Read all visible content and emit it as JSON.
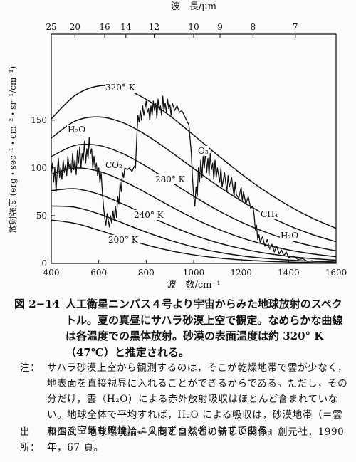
{
  "chart_data": {
    "type": "line",
    "x_axis_label": "波　数/cm⁻¹",
    "x2_axis_label": "波　長/μm",
    "y_axis_label": "放射強度 (erg・sec⁻¹・cm⁻²・sr⁻¹/cm⁻¹)",
    "xlim": [
      400,
      1600
    ],
    "xticks": [
      400,
      600,
      800,
      1000,
      1200,
      1400,
      1600
    ],
    "x2ticks": [
      25,
      20,
      16,
      14,
      12,
      10,
      9,
      8,
      7
    ],
    "ylim": [
      0,
      240
    ],
    "yticks": [
      0,
      50,
      100,
      150
    ],
    "annotations": [
      "320° K",
      "H₂O",
      "CO₂",
      "280° K",
      "240° K",
      "200° K",
      "O₃",
      "CH₄",
      "H₂O"
    ],
    "series": [
      {
        "color": "#111",
        "smooth": true,
        "x": [
          400,
          500,
          600,
          700,
          800,
          900,
          1000,
          1100,
          1200,
          1300,
          1400,
          1500,
          1600
        ],
        "values": [
          151.2,
          175.8,
          185.8,
          183.4,
          171.8,
          154.5,
          134.3,
          113.6,
          93.8,
          75.9,
          60.4,
          47.4,
          36.7
        ]
      },
      {
        "color": "#111",
        "smooth": true,
        "x": [
          400,
          500,
          600,
          700,
          800,
          900,
          1000,
          1100,
          1200,
          1300,
          1400,
          1500,
          1600
        ],
        "values": [
          131.2,
          148.9,
          153.4,
          147.5,
          134.4,
          117.4,
          99.3,
          81.5,
          65.4,
          51.4,
          39.7,
          30.2,
          22.7
        ]
      },
      {
        "color": "#111",
        "smooth": true,
        "x": [
          400,
          500,
          600,
          700,
          800,
          900,
          1000,
          1100,
          1200,
          1300,
          1400,
          1500,
          1600
        ],
        "values": [
          111.9,
          123.5,
          123.5,
          115.1,
          101.6,
          86.0,
          70.3,
          55.8,
          43.3,
          32.9,
          24.6,
          18.1,
          13.1
        ]
      },
      {
        "color": "#111",
        "smooth": true,
        "x": [
          400,
          500,
          600,
          700,
          800,
          900,
          1000,
          1100,
          1200,
          1300,
          1400,
          1500,
          1600
        ],
        "values": [
          93.5,
          99.9,
          96.5,
          86.7,
          73.8,
          60.1,
          47.2,
          36.1,
          26.9,
          19.7,
          14.1,
          10.0,
          7.0
        ]
      },
      {
        "color": "#111",
        "smooth": true,
        "x": [
          400,
          500,
          600,
          700,
          800,
          900,
          1000,
          1100,
          1200,
          1300,
          1400,
          1500,
          1600
        ],
        "values": [
          76.2,
          78.2,
          72.5,
          62.4,
          50.8,
          39.6,
          29.7,
          21.7,
          15.5,
          10.8,
          7.4,
          5.0,
          3.3
        ]
      },
      {
        "color": "#111",
        "smooth": true,
        "x": [
          400,
          500,
          600,
          700,
          800,
          900,
          1000,
          1100,
          1200,
          1300,
          1400,
          1500,
          1600
        ],
        "values": [
          60.1,
          58.8,
          51.9,
          42.4,
          32.7,
          24.2,
          17.2,
          11.9,
          8.0,
          5.3,
          3.5,
          2.2,
          1.4
        ]
      },
      {
        "color": "#111",
        "smooth": true,
        "x": [
          400,
          500,
          600,
          700,
          800,
          900,
          1000,
          1100,
          1200,
          1300,
          1400,
          1500,
          1600
        ],
        "values": [
          45.4,
          41.9,
          34.8,
          26.7,
          19.4,
          13.4,
          8.9,
          5.8,
          3.7,
          2.3,
          1.4,
          0.8,
          0.5
        ]
      },
      {
        "color": "#111",
        "smooth": false,
        "x": [
          400,
          405,
          410,
          415,
          420,
          425,
          430,
          435,
          440,
          445,
          450,
          455,
          460,
          465,
          470,
          475,
          480,
          485,
          490,
          495,
          500,
          505,
          510,
          515,
          520,
          525,
          530,
          535,
          540,
          545,
          550,
          555,
          560,
          565,
          570,
          575,
          580,
          585,
          590,
          595,
          600,
          605,
          610,
          615,
          620,
          625,
          630,
          635,
          640,
          645,
          650,
          655,
          660,
          665,
          670,
          675,
          680,
          685,
          690,
          695,
          700,
          705,
          710,
          720,
          730,
          740,
          750,
          755,
          760,
          765,
          770,
          775,
          780,
          785,
          790,
          800,
          805,
          810,
          815,
          820,
          825,
          830,
          835,
          840,
          845,
          850,
          855,
          860,
          865,
          870,
          875,
          880,
          885,
          890,
          895,
          900,
          905,
          910,
          920,
          930,
          940,
          950,
          960,
          970,
          980,
          985,
          990,
          995,
          1000,
          1005,
          1010,
          1015,
          1020,
          1025,
          1030,
          1035,
          1040,
          1045,
          1050,
          1055,
          1060,
          1065,
          1070,
          1075,
          1080,
          1085,
          1090,
          1095,
          1100,
          1110,
          1115,
          1120,
          1130,
          1140,
          1145,
          1150,
          1160,
          1170,
          1175,
          1180,
          1190,
          1200,
          1205,
          1210,
          1220,
          1230,
          1240,
          1250,
          1255,
          1260,
          1265,
          1270,
          1275,
          1280,
          1290,
          1300,
          1310,
          1320,
          1330,
          1340,
          1350,
          1360,
          1370,
          1380,
          1390,
          1400,
          1420,
          1440,
          1460,
          1480,
          1500
        ],
        "values": [
          95,
          105,
          85,
          100,
          75,
          95,
          110,
          90,
          100,
          88,
          108,
          95,
          103,
          92,
          112,
          100,
          105,
          95,
          115,
          98,
          108,
          93,
          118,
          105,
          122,
          100,
          115,
          108,
          128,
          105,
          120,
          110,
          132,
          115,
          120,
          100,
          112,
          98,
          105,
          92,
          100,
          85,
          95,
          75,
          60,
          48,
          40,
          52,
          45,
          38,
          50,
          42,
          55,
          45,
          60,
          48,
          70,
          62,
          85,
          75,
          95,
          90,
          100,
          98,
          100,
          96,
          102,
          100,
          130,
          155,
          148,
          160,
          150,
          165,
          155,
          170,
          158,
          162,
          150,
          165,
          155,
          170,
          160,
          168,
          152,
          172,
          160,
          165,
          155,
          175,
          160,
          168,
          158,
          172,
          162,
          166,
          155,
          168,
          160,
          165,
          158,
          160,
          155,
          150,
          145,
          130,
          115,
          90,
          70,
          60,
          80,
          70,
          100,
          85,
          108,
          90,
          112,
          100,
          118,
          95,
          110,
          92,
          115,
          98,
          105,
          88,
          108,
          90,
          100,
          85,
          100,
          80,
          95,
          75,
          92,
          80,
          90,
          70,
          85,
          72,
          68,
          80,
          65,
          75,
          62,
          70,
          58,
          60,
          50,
          35,
          40,
          25,
          30,
          22,
          28,
          18,
          25,
          15,
          20,
          12,
          18,
          10,
          14,
          8,
          12,
          6,
          8,
          4,
          5,
          2,
          3
        ]
      }
    ]
  },
  "caption": {
    "number": "図 2−14",
    "text": "人工衛星ニンバス４号より宇宙からみた地球放射のスペクトル。夏の真昼にサハラ砂漠上空で観定。なめらかな曲線は各温度での黒体放射。砂漠の表面温度は約 320° K（47℃）と推定される。"
  },
  "note": {
    "label": "注：",
    "text": "サハラ砂漠上空から観測するのは，そこが乾燥地帯で雲が少なく，地表面を直接視界に入れることができるからである。ただし，その分だけ，雲（H₂O）による赤外放射吸収はほとんど含まれていない。地球全体で平均すれば，H₂O による吸収は，砂漠地帯（＝雲もなく空気も乾燥）よりもずっと強いはずである。"
  },
  "source": {
    "label": "出所：",
    "text": "和田武『地球環境論―人間と自然との新しい関係』創元社，1990 年，67 頁。"
  }
}
